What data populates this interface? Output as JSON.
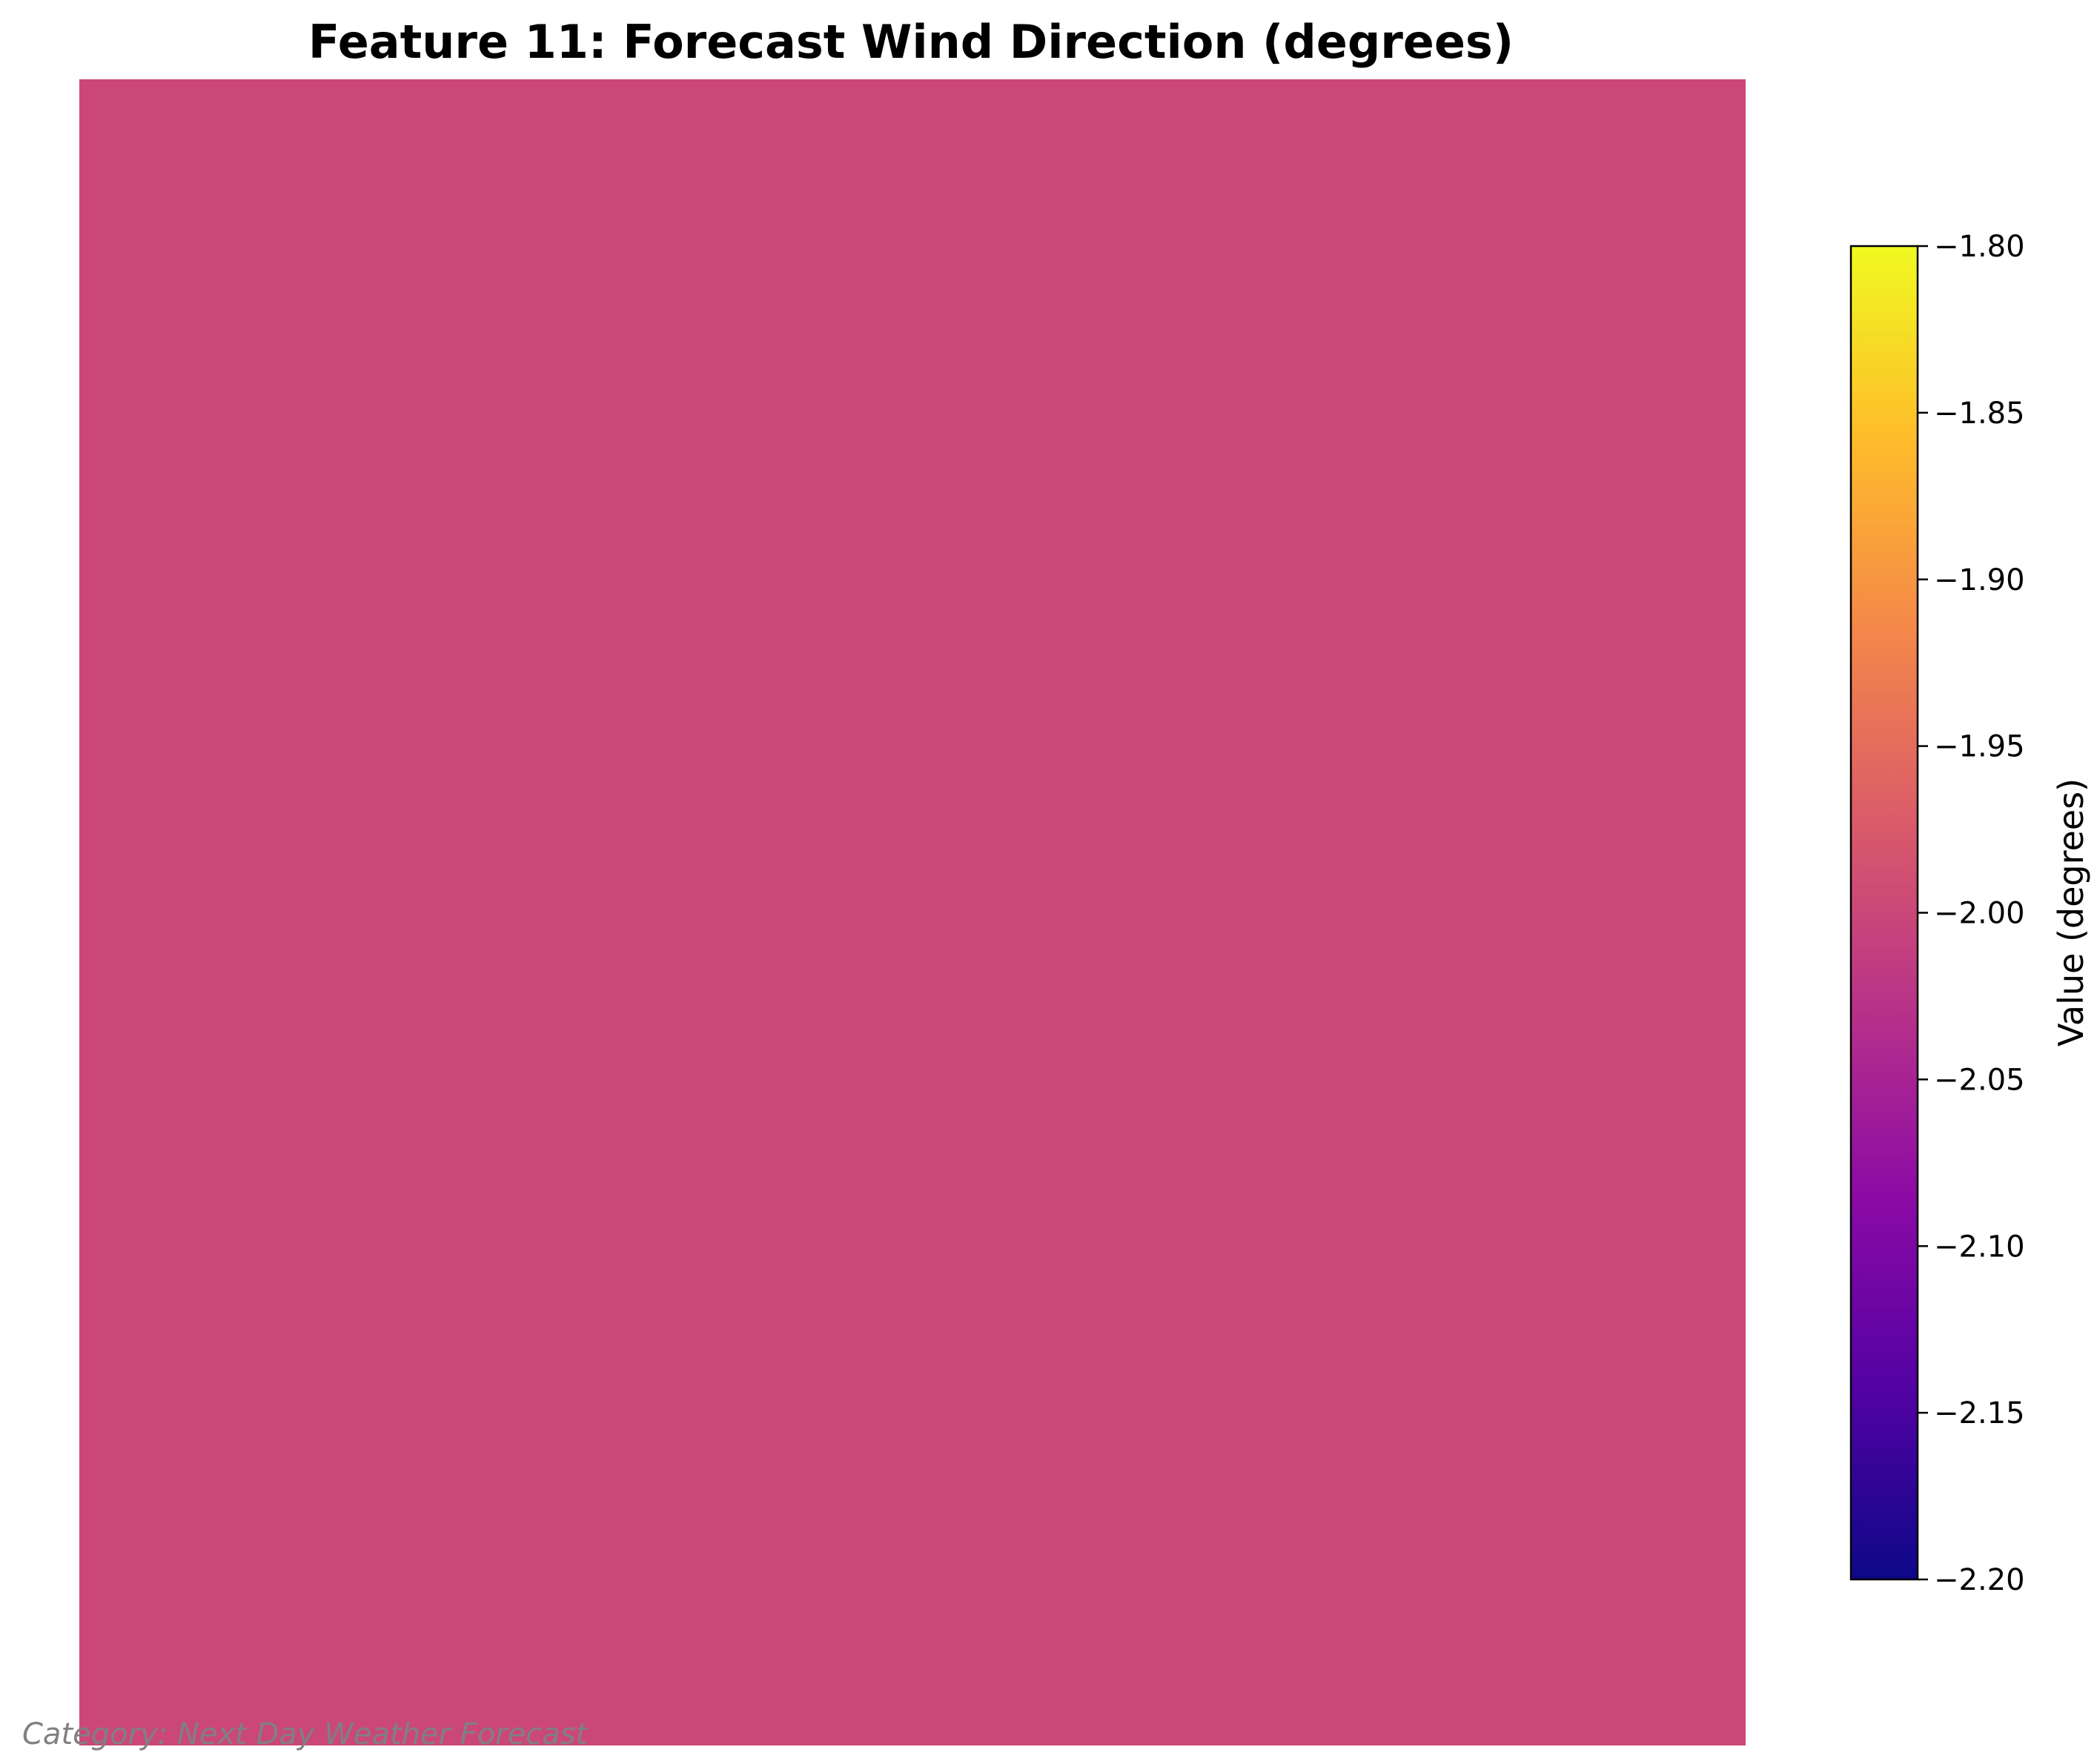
{
  "chart_data": {
    "type": "heatmap",
    "title": "Feature 11: Forecast Wind Direction (degrees)",
    "colormap": "plasma",
    "values": [
      [
        -2.0
      ]
    ],
    "colorbar": {
      "label": "Value (degrees)",
      "range": [
        -2.2,
        -1.8
      ],
      "ticks": [
        -1.8,
        -1.85,
        -1.9,
        -1.95,
        -2.0,
        -2.05,
        -2.1,
        -2.15,
        -2.2
      ],
      "tick_labels": [
        "−1.80",
        "−1.85",
        "−1.90",
        "−1.95",
        "−2.00",
        "−2.05",
        "−2.10",
        "−2.15",
        "−2.20"
      ]
    },
    "caption": "Category: Next Day Weather Forecast",
    "axes_visible": false,
    "colors": {
      "cell": "#cb4778",
      "plasma_stops": [
        "#0d0887",
        "#5302a3",
        "#8b0aa5",
        "#b83289",
        "#db5c68",
        "#f48849",
        "#febd2a",
        "#f0f921"
      ]
    }
  }
}
